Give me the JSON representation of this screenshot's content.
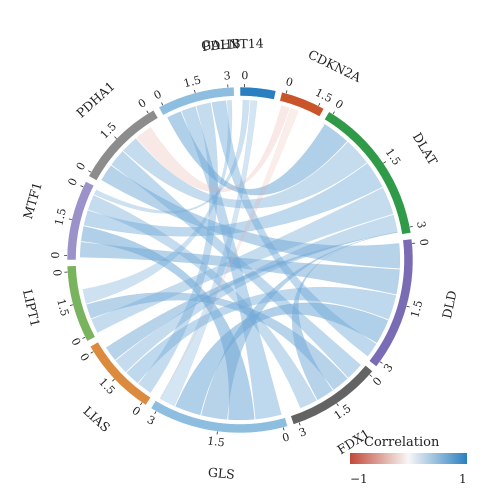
{
  "chart_data": {
    "type": "chord",
    "segments": [
      {
        "name": "GALNT14",
        "color": "#2a7fc0",
        "ticks": [
          "0",
          ""
        ]
      },
      {
        "name": "CDKN2A",
        "color": "#c9542a",
        "ticks": [
          "0",
          "1.5"
        ]
      },
      {
        "name": "DLAT",
        "color": "#2f9a48",
        "ticks": [
          "0",
          "1.5",
          "3"
        ]
      },
      {
        "name": "DLD",
        "color": "#7a6bb5",
        "ticks": [
          "0",
          "1.5",
          "3"
        ]
      },
      {
        "name": "FDX1",
        "color": "#636363",
        "ticks": [
          "0",
          "1.5",
          "3"
        ]
      },
      {
        "name": "GLS",
        "color": "#8dbee0",
        "ticks": [
          "0",
          "1.5",
          "3"
        ]
      },
      {
        "name": "LIAS",
        "color": "#db8a3e",
        "ticks": [
          "0",
          "1.5",
          "0"
        ]
      },
      {
        "name": "LIPT1",
        "color": "#7ab35e",
        "ticks": [
          "0",
          "1.5",
          "0"
        ]
      },
      {
        "name": "MTF1",
        "color": "#9a92c8",
        "ticks": [
          "0",
          "1.5",
          "0"
        ]
      },
      {
        "name": "PDHA1",
        "color": "#8c8c8c",
        "ticks": [
          "0",
          "1.5",
          "0"
        ]
      },
      {
        "name": "PDHB",
        "color": "#8dbee0",
        "ticks": [
          "0",
          "1.5",
          "3"
        ]
      }
    ],
    "legend": {
      "title": "Correlation",
      "min_label": "−1",
      "max_label": "1",
      "low_color": "#c24a39",
      "mid_color": "#f7f7f7",
      "high_color": "#2a7fc0"
    }
  }
}
